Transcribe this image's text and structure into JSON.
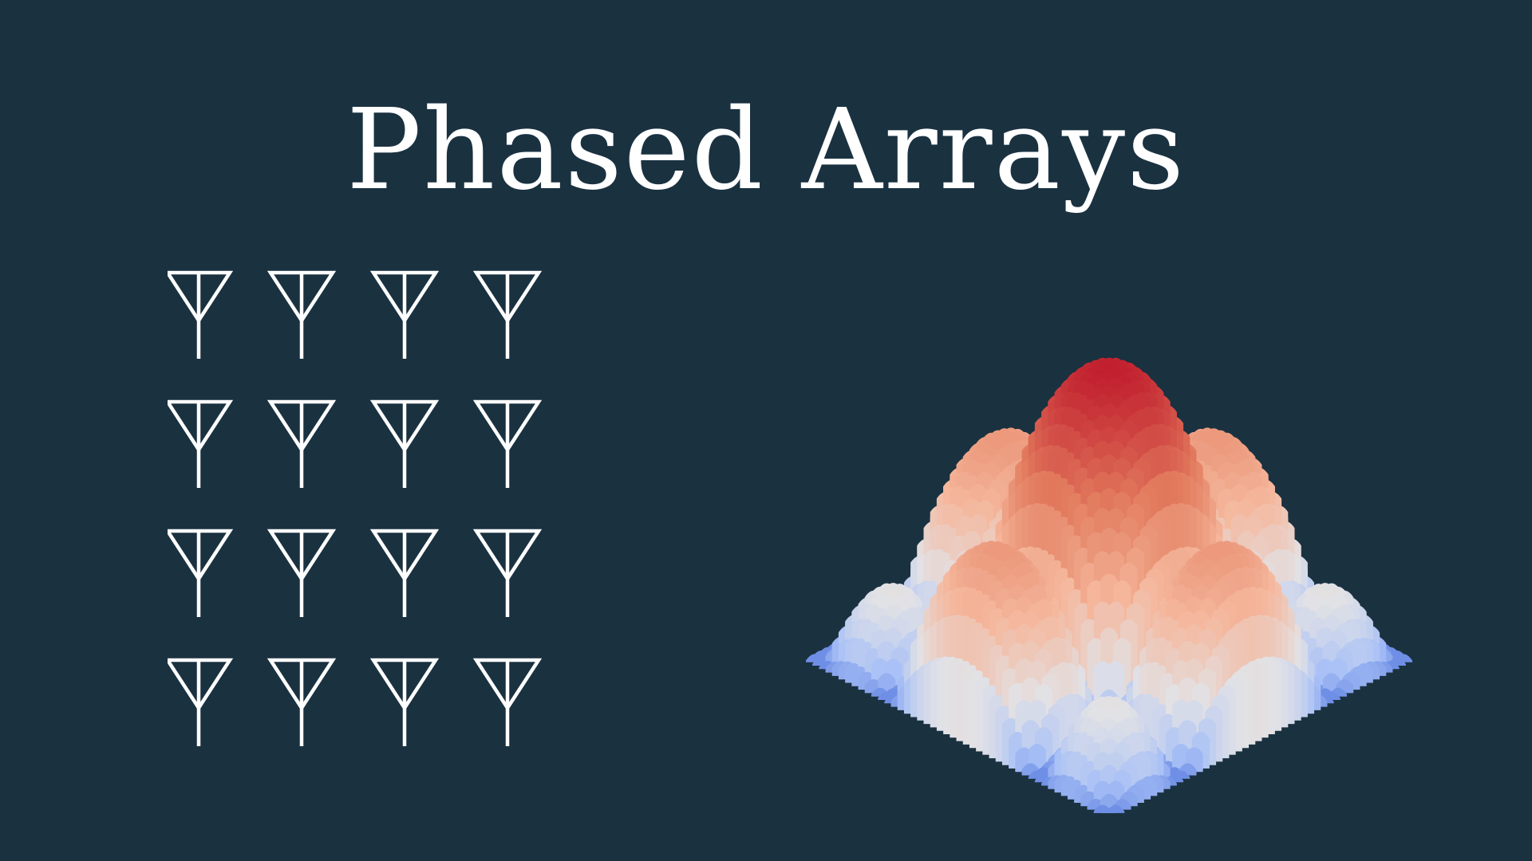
{
  "slide": {
    "title": "Phased Arrays",
    "background_color": "#1a3140"
  },
  "antenna_array": {
    "rows": 4,
    "columns": 4,
    "icon": "antenna-icon",
    "stroke_color": "#ffffff"
  },
  "radiation_pattern": {
    "icon": "3d-beam-pattern-surface",
    "colormap": [
      "#6f8fe6",
      "#a9c1f6",
      "#e2e2e6",
      "#f5b79c",
      "#e37d5f",
      "#c11f2e"
    ]
  }
}
